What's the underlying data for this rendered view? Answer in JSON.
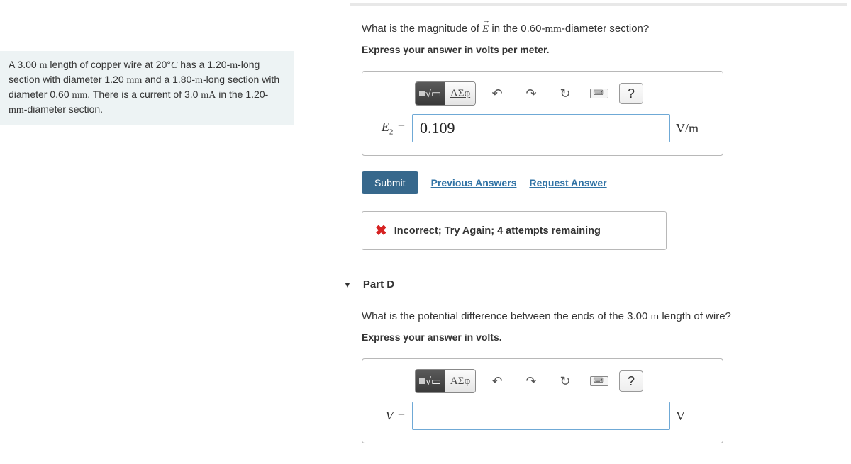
{
  "problem": {
    "text_html": "A 3.00 <span class='rm'>m</span> length of copper wire at 20°<span class='serif-i'>C</span> has a 1.20-<span class='rm'>m</span>-long section with diameter 1.20 <span class='rm'>mm</span> and a 1.80-<span class='rm'>m</span>-long section with diameter 0.60 <span class='rm'>mm</span>. There is a current of 3.0 <span class='rm'>mA</span> in the 1.20-<span class='rm'>mm</span>-diameter section."
  },
  "partC": {
    "question_html": "What is the magnitude of <span class='serif-i vec-arrow'>E</span> in the 0.60-<span class='rm'>mm</span>-diameter section?",
    "instruction": "Express your answer in volts per meter.",
    "var_label_html": "<span class='serif-i'>E</span><span class='sub'>2</span> <span class='eq'>=</span>",
    "input_value": "0.109",
    "unit_html": "<span class='rm'>V/m</span>",
    "submit": "Submit",
    "prev_answers": "Previous Answers",
    "request_answer": "Request Answer",
    "feedback": "Incorrect; Try Again; 4 attempts remaining"
  },
  "partD": {
    "header": "Part D",
    "question_html": "What is the potential difference between the ends of the 3.00 <span class='rm'>m</span> length of wire?",
    "instruction": "Express your answer in volts.",
    "var_label_html": "<span class='serif-i'>V</span> <span class='eq'>=</span>",
    "input_value": "",
    "unit_html": "<span class='rm'>V</span>"
  },
  "toolbar": {
    "templates": "▭√▭",
    "greek": "ΑΣφ",
    "undo": "↶",
    "redo": "↷",
    "reset": "↻",
    "keyboard": "⌨",
    "help": "?"
  }
}
